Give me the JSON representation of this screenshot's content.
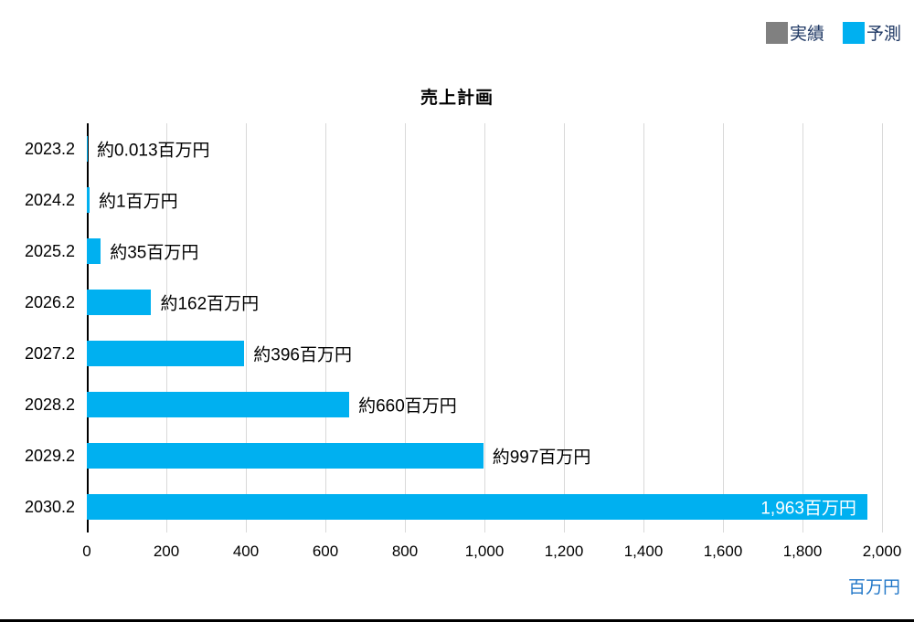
{
  "title": "売上計画",
  "legend": {
    "actual_label": "実績",
    "actual_color": "#808080",
    "forecast_label": "予測",
    "forecast_color": "#00b0f0"
  },
  "axis": {
    "unit_label": "百万円",
    "unit_color": "#2177c8"
  },
  "chart_data": {
    "type": "bar",
    "orientation": "horizontal",
    "title": "売上計画",
    "xlabel": "百万円",
    "categories": [
      "2023.2",
      "2024.2",
      "2025.2",
      "2026.2",
      "2027.2",
      "2028.2",
      "2029.2",
      "2030.2"
    ],
    "values": [
      0.013,
      1,
      35,
      162,
      396,
      660,
      997,
      1963
    ],
    "bar_labels": [
      "約0.013百万円",
      "約1百万円",
      "約35百万円",
      "約162百万円",
      "約396百万円",
      "約660百万円",
      "約997百万円",
      "1,963百万円"
    ],
    "series": [
      {
        "name": "予測",
        "color": "#00b0f0"
      }
    ],
    "xlim": [
      0,
      2000
    ],
    "xticks": [
      "0",
      "200",
      "400",
      "600",
      "800",
      "1,000",
      "1,200",
      "1,400",
      "1,600",
      "1,800",
      "2,000"
    ],
    "grid": true,
    "legend_position": "top-right",
    "inside_label_index": 7
  }
}
